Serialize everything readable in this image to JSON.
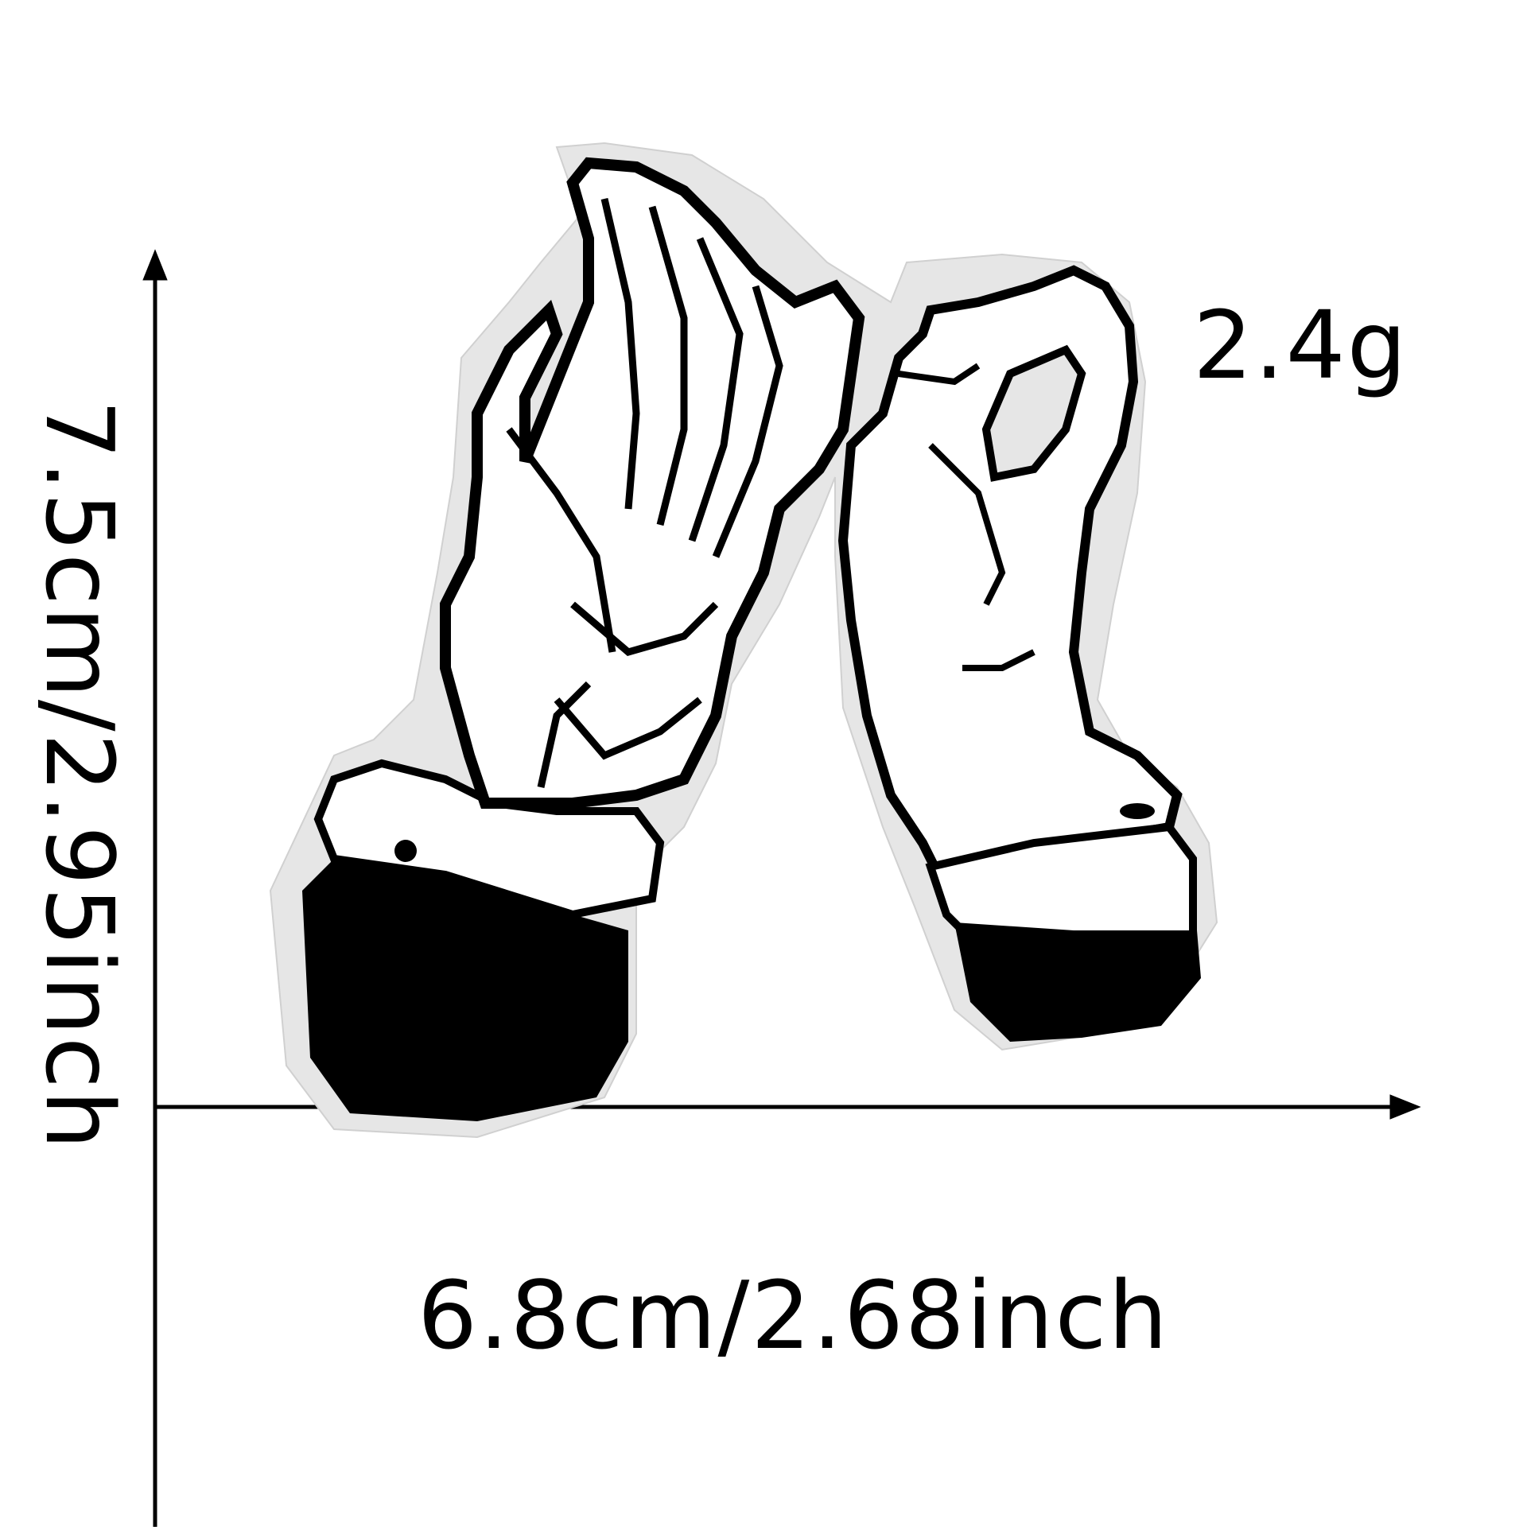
{
  "dimensions": {
    "weight": "2.4g",
    "width": "6.8cm/2.68inch",
    "height": "7.5cm/2.95inch"
  },
  "colors": {
    "ink": "#000000",
    "felt": "#e6e6e6",
    "stitch": "#ffffff"
  },
  "product": {
    "icon": "skeleton-hand-pinky-promise-patch"
  }
}
